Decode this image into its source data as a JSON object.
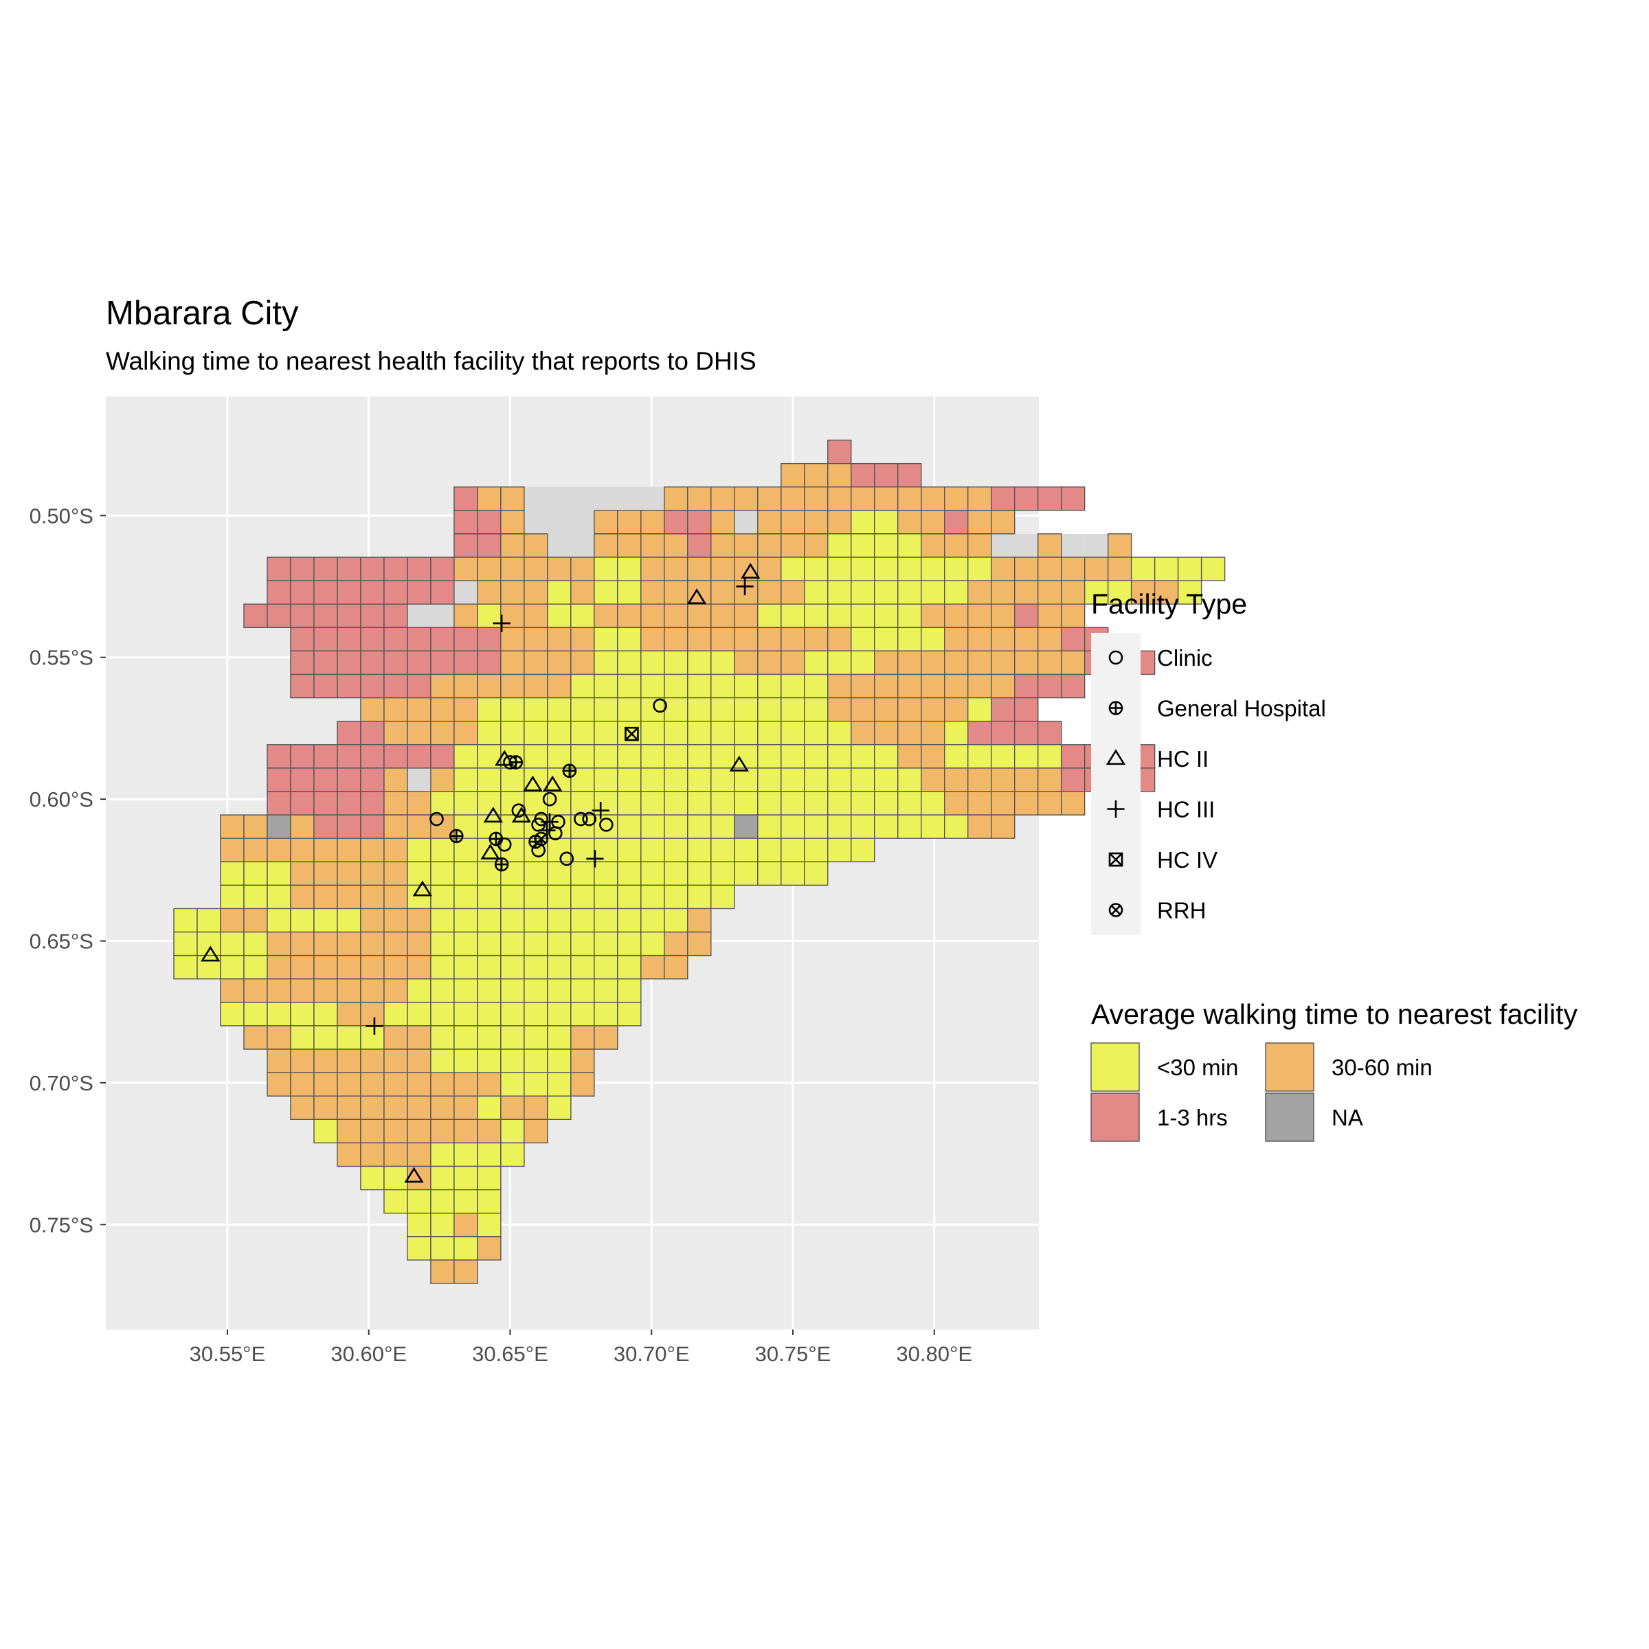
{
  "title": "Mbarara City",
  "subtitle": "Walking time to nearest health facility that reports to DHIS",
  "axes": {
    "x": {
      "ticks": [
        30.55,
        30.6,
        30.65,
        30.7,
        30.75,
        30.8
      ],
      "tick_labels": [
        "30.55°E",
        "30.60°E",
        "30.65°E",
        "30.70°E",
        "30.75°E",
        "30.80°E"
      ],
      "range": [
        30.507,
        30.837
      ]
    },
    "y": {
      "ticks": [
        -0.5,
        -0.55,
        -0.6,
        -0.65,
        -0.7,
        -0.75
      ],
      "tick_labels": [
        "0.50°S",
        "0.55°S",
        "0.60°S",
        "0.65°S",
        "0.70°S",
        "0.75°S"
      ],
      "range": [
        -0.787,
        -0.458
      ]
    }
  },
  "colors": {
    "panel": "#ebebeb",
    "grid": "#ffffff",
    "lt30": "#ecf35a",
    "m30_60": "#f2b86a",
    "h1_3": "#e38a89",
    "na": "#a3a3a3",
    "boundary_bg": "#d9d9d9",
    "cell_border": "#555555"
  },
  "legend": {
    "facility": {
      "title": "Facility Type",
      "items": [
        {
          "label": "Clinic",
          "shape": "circle"
        },
        {
          "label": "General Hospital",
          "shape": "circle-plus"
        },
        {
          "label": "HC II",
          "shape": "triangle"
        },
        {
          "label": "HC III",
          "shape": "plus"
        },
        {
          "label": "HC IV",
          "shape": "square-cross"
        },
        {
          "label": "RRH",
          "shape": "circle-cross"
        }
      ]
    },
    "walking": {
      "title": "Average walking time to nearest facility",
      "items": [
        {
          "label": "<30 min",
          "key": "lt30"
        },
        {
          "label": "30-60 min",
          "key": "m30_60"
        },
        {
          "label": "1-3 hrs",
          "key": "h1_3"
        },
        {
          "label": "NA",
          "key": "na"
        }
      ]
    }
  },
  "chart_data": {
    "type": "map",
    "grid_origin": {
      "lon": 30.5228,
      "lat": -0.4734
    },
    "cell_size_deg": 0.00826,
    "cell_codes": {
      "Y": "<30 min",
      "O": "30-60 min",
      "R": "1-3 hrs",
      "G": "NA"
    },
    "rows": [
      {
        "row": 0,
        "start": 29,
        "cells": "R"
      },
      {
        "row": 1,
        "start": 27,
        "cells": "OOORRR"
      },
      {
        "row": 2,
        "start": 13,
        "cells": "ROO......OOOOOOOOOOOOOORRRR"
      },
      {
        "row": 3,
        "start": 13,
        "cells": "RRO...OOORRO.OOOOYYOOROO"
      },
      {
        "row": 4,
        "start": 13,
        "cells": "RROO..OOOOROOOOOYYYYOOO..O..O"
      },
      {
        "row": 5,
        "start": 5,
        "cells": "RRRRRRRROOOOOOYYOOOOOOYYYYYYYYYOOOOOOYYYY"
      },
      {
        "row": 6,
        "start": 5,
        "cells": "RRRRRRRR.OOOYOYYOOOOOOOYYYYYYYOOOOOYYOOY"
      },
      {
        "row": 7,
        "start": 4,
        "cells": "RRRRRRR..OYOOYYOOOOOOOYYYYYYYOOOOROO"
      },
      {
        "row": 8,
        "start": 6,
        "cells": "RRRRRRRRROOOOYYOOOOOOOOOYYYYOOOOORR"
      },
      {
        "row": 9,
        "start": 6,
        "cells": "RRRRRRRRROOOOYYYYYYOOOYYYOOOOOOOOORRR"
      },
      {
        "row": 10,
        "start": 6,
        "cells": "RRRRRROOOOOOYYYYYYYYYYYOOOOOOOORRR"
      },
      {
        "row": 11,
        "start": 9,
        "cells": "OOOOOYYYYYYYYYYYYYYYOOOOOOYRR"
      },
      {
        "row": 12,
        "start": 8,
        "cells": "RROOOOYYYYYYYYYYYYYYYYOOOOYRRRR"
      },
      {
        "row": 13,
        "start": 5,
        "cells": "RRRRRRRRYYYYYYYYYYYYYYYYYYYOOYYYYYRRRR"
      },
      {
        "row": 14,
        "start": 5,
        "cells": "RRRRRO.OYYYYYYYYYYYYYYYYYYYYOOOOOORRRR"
      },
      {
        "row": 15,
        "start": 5,
        "cells": "RRRRROOYYYYYYYYYYYYYYYYYYYYYYOOOOOO"
      },
      {
        "row": 16,
        "start": 3,
        "cells": "OOGORRROOOYYYYYYYYYYYYGYYYYYYYYYOO"
      },
      {
        "row": 17,
        "start": 3,
        "cells": "OOOOOOOOYYYYYYYYYYYYYYYYYYYY"
      },
      {
        "row": 18,
        "start": 3,
        "cells": "YYYOOOOOYYYYYYYYYYYYYYYYYY"
      },
      {
        "row": 19,
        "start": 3,
        "cells": "YYYOOOOOYYYYYYYYYYYYYY"
      },
      {
        "row": 20,
        "start": 1,
        "cells": "YYOOYYYYOOOYYYYYYYYYYYO"
      },
      {
        "row": 21,
        "start": 1,
        "cells": "YYYYOOOOOOOYYYYYYYYYYOO"
      },
      {
        "row": 22,
        "start": 1,
        "cells": "YYYYOOOOOOOYYYYYYYYYOO"
      },
      {
        "row": 23,
        "start": 3,
        "cells": "OOOOOOOOYYYYYYYYYY"
      },
      {
        "row": 24,
        "start": 3,
        "cells": "YYYYYOOYYYYYYYYYYY"
      },
      {
        "row": 25,
        "start": 4,
        "cells": "OOYYYYOOYYYYYYOO"
      },
      {
        "row": 26,
        "start": 5,
        "cells": "OOOOOOOYYYYYYO"
      },
      {
        "row": 27,
        "start": 5,
        "cells": "OOOOOOOOOOYYYO"
      },
      {
        "row": 28,
        "start": 6,
        "cells": "OOOOOOOOYOOY"
      },
      {
        "row": 29,
        "start": 7,
        "cells": "YOOOOOOOYO"
      },
      {
        "row": 30,
        "start": 8,
        "cells": "OOOOYYYY"
      },
      {
        "row": 31,
        "start": 9,
        "cells": "YYOYYY"
      },
      {
        "row": 32,
        "start": 10,
        "cells": "YYYYY"
      },
      {
        "row": 33,
        "start": 11,
        "cells": "YYOY"
      },
      {
        "row": 34,
        "start": 11,
        "cells": "YYYO"
      },
      {
        "row": 35,
        "start": 12,
        "cells": "OO"
      }
    ],
    "facilities": [
      {
        "type": "Clinic",
        "lon": 30.624,
        "lat": -0.607
      },
      {
        "type": "Clinic",
        "lon": 30.648,
        "lat": -0.616
      },
      {
        "type": "Clinic",
        "lon": 30.65,
        "lat": -0.587
      },
      {
        "type": "Clinic",
        "lon": 30.653,
        "lat": -0.604
      },
      {
        "type": "Clinic",
        "lon": 30.66,
        "lat": -0.609
      },
      {
        "type": "Clinic",
        "lon": 30.661,
        "lat": -0.607
      },
      {
        "type": "Clinic",
        "lon": 30.664,
        "lat": -0.6
      },
      {
        "type": "Clinic",
        "lon": 30.666,
        "lat": -0.612
      },
      {
        "type": "Clinic",
        "lon": 30.667,
        "lat": -0.608
      },
      {
        "type": "Clinic",
        "lon": 30.67,
        "lat": -0.621
      },
      {
        "type": "Clinic",
        "lon": 30.675,
        "lat": -0.607
      },
      {
        "type": "Clinic",
        "lon": 30.678,
        "lat": -0.607
      },
      {
        "type": "Clinic",
        "lon": 30.684,
        "lat": -0.609
      },
      {
        "type": "Clinic",
        "lon": 30.703,
        "lat": -0.567
      },
      {
        "type": "Clinic",
        "lon": 30.66,
        "lat": -0.618
      },
      {
        "type": "General Hospital",
        "lon": 30.631,
        "lat": -0.613
      },
      {
        "type": "General Hospital",
        "lon": 30.645,
        "lat": -0.614
      },
      {
        "type": "General Hospital",
        "lon": 30.647,
        "lat": -0.623
      },
      {
        "type": "General Hospital",
        "lon": 30.652,
        "lat": -0.587
      },
      {
        "type": "General Hospital",
        "lon": 30.659,
        "lat": -0.615
      },
      {
        "type": "General Hospital",
        "lon": 30.671,
        "lat": -0.59
      },
      {
        "type": "HC II",
        "lon": 30.544,
        "lat": -0.655
      },
      {
        "type": "HC II",
        "lon": 30.616,
        "lat": -0.733
      },
      {
        "type": "HC II",
        "lon": 30.619,
        "lat": -0.632
      },
      {
        "type": "HC II",
        "lon": 30.643,
        "lat": -0.619
      },
      {
        "type": "HC II",
        "lon": 30.644,
        "lat": -0.606
      },
      {
        "type": "HC II",
        "lon": 30.648,
        "lat": -0.586
      },
      {
        "type": "HC II",
        "lon": 30.654,
        "lat": -0.606
      },
      {
        "type": "HC II",
        "lon": 30.658,
        "lat": -0.595
      },
      {
        "type": "HC II",
        "lon": 30.665,
        "lat": -0.595
      },
      {
        "type": "HC II",
        "lon": 30.716,
        "lat": -0.529
      },
      {
        "type": "HC II",
        "lon": 30.731,
        "lat": -0.588
      },
      {
        "type": "HC II",
        "lon": 30.735,
        "lat": -0.52
      },
      {
        "type": "HC III",
        "lon": 30.602,
        "lat": -0.68
      },
      {
        "type": "HC III",
        "lon": 30.647,
        "lat": -0.538
      },
      {
        "type": "HC III",
        "lon": 30.663,
        "lat": -0.611
      },
      {
        "type": "HC III",
        "lon": 30.664,
        "lat": -0.608
      },
      {
        "type": "HC III",
        "lon": 30.68,
        "lat": -0.621
      },
      {
        "type": "HC III",
        "lon": 30.682,
        "lat": -0.604
      },
      {
        "type": "HC III",
        "lon": 30.733,
        "lat": -0.525
      },
      {
        "type": "HC IV",
        "lon": 30.693,
        "lat": -0.577
      },
      {
        "type": "RRH",
        "lon": 30.661,
        "lat": -0.614
      }
    ]
  }
}
